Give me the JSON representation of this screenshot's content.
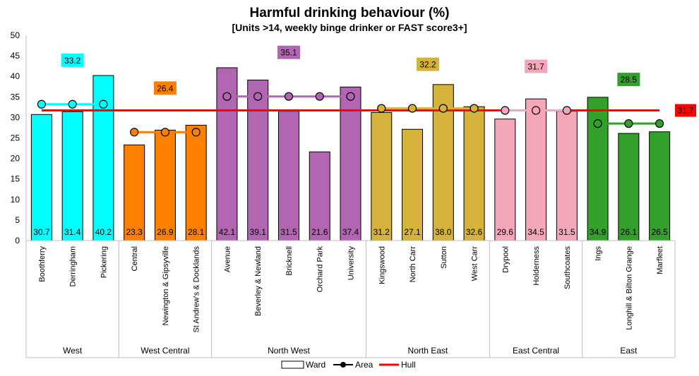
{
  "chart_data": {
    "type": "bar",
    "title": "Harmful drinking behaviour (%)",
    "subtitle": "[Units >14, weekly binge drinker or FAST score3+]",
    "ylim": [
      0,
      50
    ],
    "yticks": [
      0,
      5,
      10,
      15,
      20,
      25,
      30,
      35,
      40,
      45,
      50
    ],
    "grid": false,
    "legend_position": "bottom",
    "legend": [
      "Ward",
      "Area",
      "Hull"
    ],
    "categories": [
      "Boothferry",
      "Derringham",
      "Pickering",
      "Central",
      "Newington & Gipsyville",
      "St Andrew's & Docklands",
      "Avenue",
      "Beverley & Newland",
      "Bricknell",
      "Orchard Park",
      "University",
      "Kingswood",
      "North Carr",
      "Sutton",
      "West Carr",
      "Drypool",
      "Holderness",
      "Southcoates",
      "Ings",
      "Longhill & Bilton Grange",
      "Marfleet"
    ],
    "ward_values": [
      30.7,
      31.4,
      40.2,
      23.3,
      26.9,
      28.1,
      42.1,
      39.1,
      31.5,
      21.6,
      37.4,
      31.2,
      27.1,
      38.0,
      32.6,
      29.6,
      34.5,
      31.5,
      34.9,
      26.1,
      26.5
    ],
    "groups": [
      {
        "name": "West",
        "count": 3,
        "area_value": 33.2,
        "color": "#00FFFF"
      },
      {
        "name": "West Central",
        "count": 3,
        "area_value": 26.4,
        "color": "#FF8000"
      },
      {
        "name": "North West",
        "count": 5,
        "area_value": 35.1,
        "color": "#B266B2"
      },
      {
        "name": "North East",
        "count": 4,
        "area_value": 32.2,
        "color": "#D4B23C"
      },
      {
        "name": "East Central",
        "count": 3,
        "area_value": 31.7,
        "color": "#F4A7B9"
      },
      {
        "name": "East",
        "count": 3,
        "area_value": 28.5,
        "color": "#33A02C"
      }
    ],
    "hull": {
      "name": "Hull",
      "value": 31.7,
      "color": "#FF0000"
    }
  }
}
